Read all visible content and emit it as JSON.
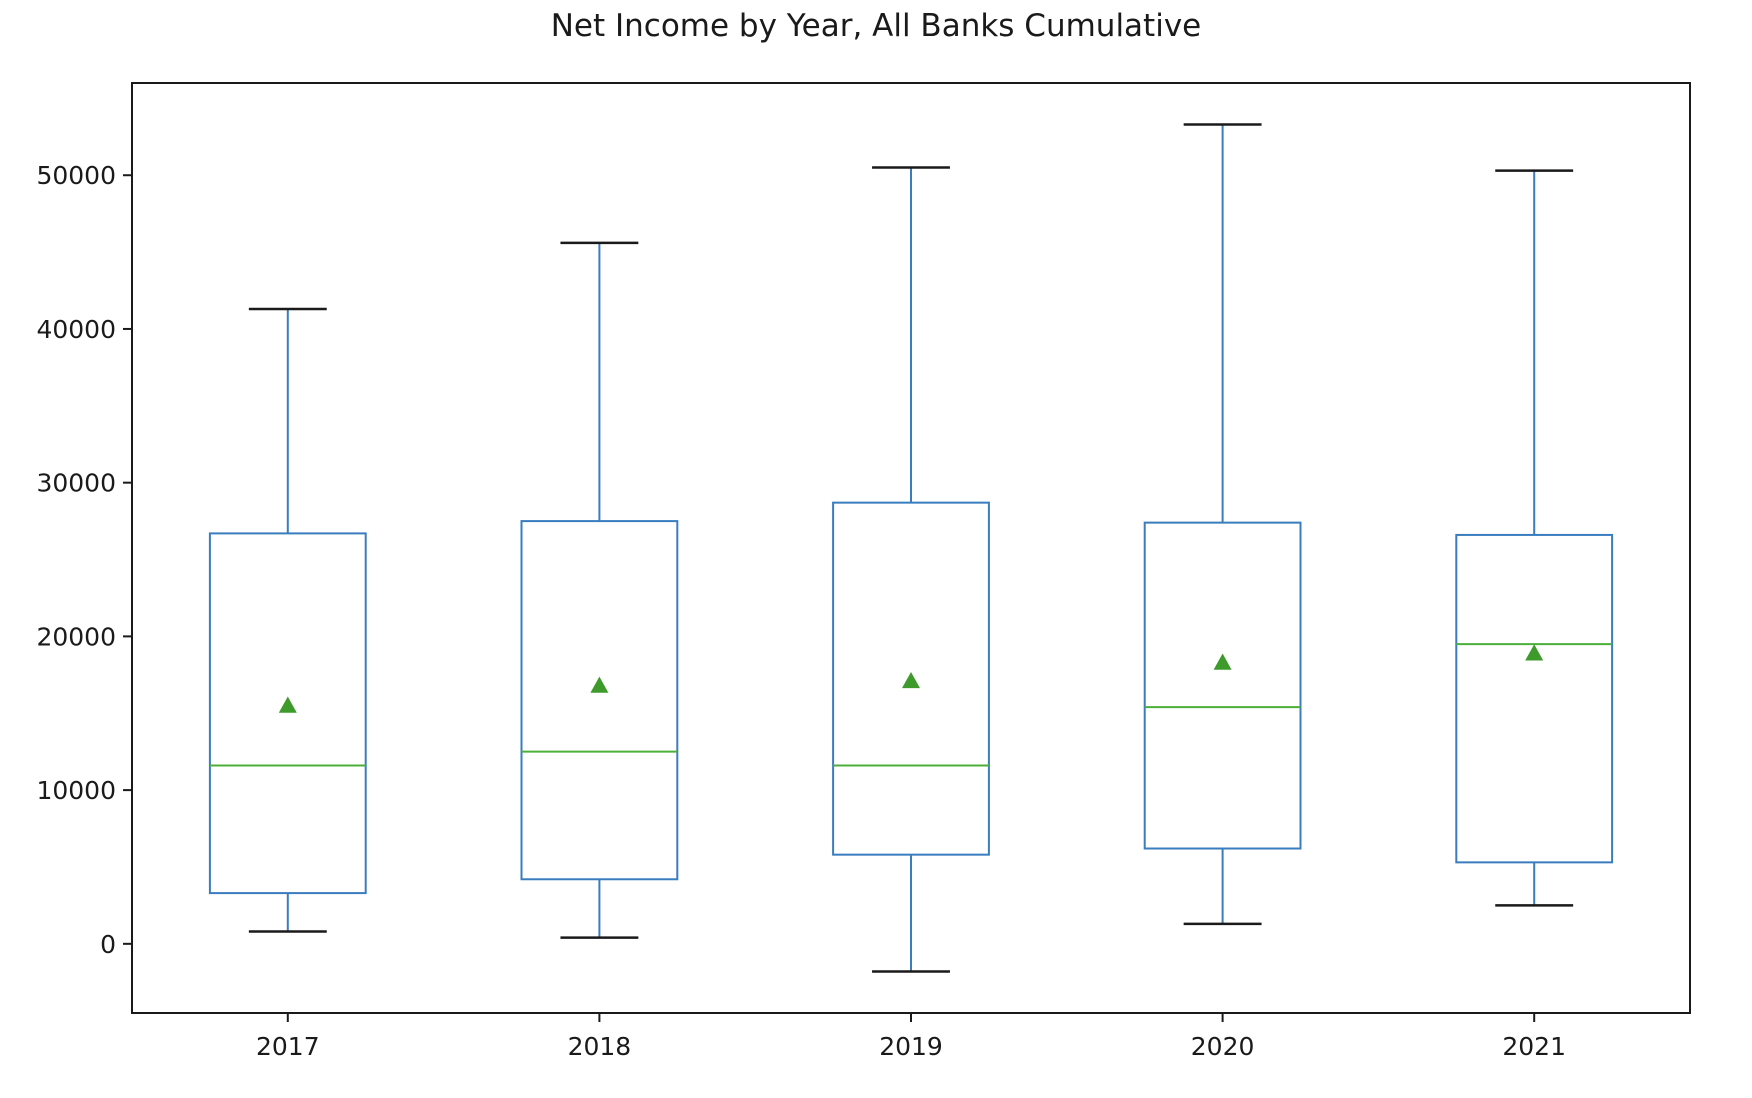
{
  "chart_data": {
    "type": "box",
    "title": "Net Income by Year, All Banks Cumulative",
    "xlabel": "",
    "ylabel": "",
    "categories": [
      "2017",
      "2018",
      "2019",
      "2020",
      "2021"
    ],
    "ylim": [
      -4500,
      56000
    ],
    "yticks": [
      0,
      10000,
      20000,
      30000,
      40000,
      50000
    ],
    "grid": false,
    "legend": "none",
    "boxes": [
      {
        "category": "2017",
        "whisker_low": 800,
        "q1": 3300,
        "median": 11600,
        "q3": 26700,
        "whisker_high": 41300,
        "mean": 15500
      },
      {
        "category": "2018",
        "whisker_low": 400,
        "q1": 4200,
        "median": 12500,
        "q3": 27500,
        "whisker_high": 45600,
        "mean": 16800
      },
      {
        "category": "2019",
        "whisker_low": -1800,
        "q1": 5800,
        "median": 11600,
        "q3": 28700,
        "whisker_high": 50500,
        "mean": 17100
      },
      {
        "category": "2020",
        "whisker_low": 1300,
        "q1": 6200,
        "median": 15400,
        "q3": 27400,
        "whisker_high": 53300,
        "mean": 18300
      },
      {
        "category": "2021",
        "whisker_low": 2500,
        "q1": 5300,
        "median": 19500,
        "q3": 26600,
        "whisker_high": 50300,
        "mean": 18900
      }
    ],
    "colors": {
      "box": "#3a7dbf",
      "whisker_cap": "#1a1a1a",
      "median": "#4caf3a",
      "mean_marker": "#3f9a2c",
      "axis": "#1a1a1a"
    }
  }
}
